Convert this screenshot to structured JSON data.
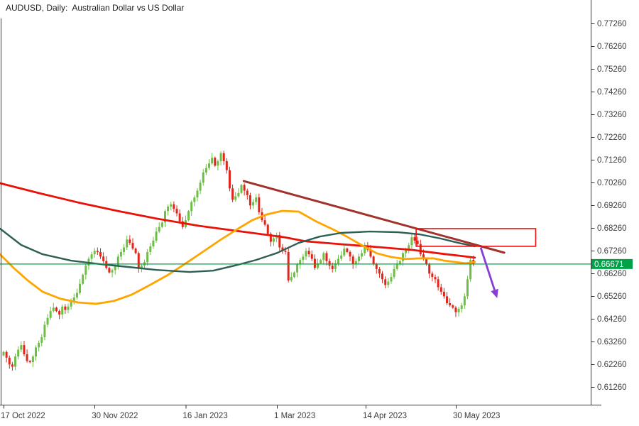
{
  "window": {
    "title": "AUDUSD, Daily:  Australian Dollar vs US Dollar"
  },
  "chart_data": {
    "type": "candlestick",
    "symbol": "AUDUSD",
    "timeframe": "Daily",
    "pair_description": "Australian Dollar vs US Dollar",
    "current_price": "0.66671",
    "price_axis": {
      "top_tick_value": 0.7726,
      "tick_step": 0.01,
      "ticks": [
        "0.77260",
        "0.76260",
        "0.75260",
        "0.74260",
        "0.73260",
        "0.72260",
        "0.71260",
        "0.70260",
        "0.69260",
        "0.68260",
        "0.67260",
        "0.66260",
        "0.65260",
        "0.64260",
        "0.63260",
        "0.62260",
        "0.61260"
      ]
    },
    "time_axis": {
      "ticks": [
        {
          "label": "17 Oct 2022",
          "bar": 0
        },
        {
          "label": "30 Nov 2022",
          "bar": 31
        },
        {
          "label": "16 Jan 2023",
          "bar": 62
        },
        {
          "label": "1 Mar 2023",
          "bar": 93.1
        },
        {
          "label": "14 Apr 2023",
          "bar": 123.3
        },
        {
          "label": "30 May 2023",
          "bar": 154
        }
      ]
    },
    "candles": {
      "first_open": 0.6265,
      "closes": [
        0.628,
        0.6255,
        0.6225,
        0.6215,
        0.626,
        0.629,
        0.631,
        0.627,
        0.624,
        0.6235,
        0.626,
        0.63,
        0.632,
        0.6345,
        0.64,
        0.643,
        0.646,
        0.6475,
        0.646,
        0.6445,
        0.648,
        0.6465,
        0.648,
        0.65,
        0.652,
        0.654,
        0.658,
        0.662,
        0.666,
        0.669,
        0.671,
        0.6725,
        0.672,
        0.67,
        0.668,
        0.665,
        0.663,
        0.664,
        0.666,
        0.67,
        0.672,
        0.674,
        0.6775,
        0.676,
        0.6735,
        0.6715,
        0.665,
        0.666,
        0.6675,
        0.672,
        0.6745,
        0.677,
        0.681,
        0.683,
        0.685,
        0.69,
        0.692,
        0.693,
        0.691,
        0.689,
        0.6855,
        0.683,
        0.686,
        0.69,
        0.694,
        0.696,
        0.699,
        0.7025,
        0.707,
        0.709,
        0.711,
        0.7135,
        0.71,
        0.712,
        0.7155,
        0.712,
        0.708,
        0.7,
        0.695,
        0.6965,
        0.698,
        0.7015,
        0.699,
        0.697,
        0.6925,
        0.694,
        0.696,
        0.6895,
        0.686,
        0.684,
        0.68,
        0.6765,
        0.678,
        0.6795,
        0.674,
        0.6725,
        0.672,
        0.6595,
        0.661,
        0.663,
        0.6665,
        0.6685,
        0.67,
        0.6725,
        0.671,
        0.669,
        0.665,
        0.667,
        0.6685,
        0.6715,
        0.668,
        0.666,
        0.6645,
        0.667,
        0.669,
        0.6705,
        0.6735,
        0.672,
        0.67,
        0.6665,
        0.668,
        0.67,
        0.6715,
        0.6745,
        0.673,
        0.67,
        0.6665,
        0.6645,
        0.6625,
        0.66,
        0.6575,
        0.659,
        0.661,
        0.6645,
        0.6665,
        0.668,
        0.6715,
        0.673,
        0.675,
        0.6785,
        0.677,
        0.6755,
        0.671,
        0.669,
        0.6665,
        0.6625,
        0.661,
        0.66,
        0.6565,
        0.6545,
        0.6525,
        0.6495,
        0.6485,
        0.6475,
        0.6455,
        0.647,
        0.6485,
        0.6525,
        0.66,
        0.6685,
        0.66671
      ]
    },
    "indicators": [
      {
        "name": "ma-red",
        "color": "#e81208",
        "width": 2.8,
        "points": [
          [
            -1.2,
            0.7023
          ],
          [
            12.1,
            0.6979
          ],
          [
            25.4,
            0.6938
          ],
          [
            38.7,
            0.6901
          ],
          [
            52.1,
            0.6867
          ],
          [
            66.6,
            0.6835
          ],
          [
            81.1,
            0.681
          ],
          [
            95.6,
            0.6785
          ],
          [
            102.9,
            0.6767
          ],
          [
            115.0,
            0.6754
          ],
          [
            127.1,
            0.6742
          ],
          [
            139.2,
            0.6729
          ],
          [
            148.9,
            0.6713
          ],
          [
            154.9,
            0.6704
          ],
          [
            160.5,
            0.6695
          ]
        ]
      },
      {
        "name": "ma-orange",
        "color": "#ffa500",
        "width": 2.8,
        "points": [
          [
            -1.2,
            0.671
          ],
          [
            3.6,
            0.6648
          ],
          [
            8.5,
            0.6592
          ],
          [
            13.3,
            0.6545
          ],
          [
            19.4,
            0.6514
          ],
          [
            25.4,
            0.6498
          ],
          [
            31.5,
            0.6492
          ],
          [
            37.5,
            0.6504
          ],
          [
            43.6,
            0.6532
          ],
          [
            49.6,
            0.6573
          ],
          [
            55.7,
            0.6617
          ],
          [
            61.7,
            0.6667
          ],
          [
            67.8,
            0.672
          ],
          [
            73.8,
            0.6773
          ],
          [
            79.9,
            0.6823
          ],
          [
            84.7,
            0.686
          ],
          [
            89.6,
            0.6885
          ],
          [
            94.9,
            0.6901
          ],
          [
            100.5,
            0.6898
          ],
          [
            106.5,
            0.6854
          ],
          [
            112.6,
            0.6817
          ],
          [
            116.7,
            0.6789
          ],
          [
            122.3,
            0.6748
          ],
          [
            127.1,
            0.6714
          ],
          [
            132.0,
            0.6698
          ],
          [
            136.8,
            0.6689
          ],
          [
            141.6,
            0.6692
          ],
          [
            146.5,
            0.6692
          ],
          [
            150.1,
            0.6682
          ],
          [
            153.7,
            0.6676
          ],
          [
            157.4,
            0.667
          ],
          [
            160.5,
            0.6676
          ]
        ]
      },
      {
        "name": "ma-teal",
        "color": "#2e5f55",
        "width": 2.4,
        "points": [
          [
            -1.2,
            0.6823
          ],
          [
            6.0,
            0.6751
          ],
          [
            13.3,
            0.671
          ],
          [
            23.0,
            0.6682
          ],
          [
            32.7,
            0.6667
          ],
          [
            42.4,
            0.6654
          ],
          [
            52.1,
            0.6641
          ],
          [
            63.4,
            0.6632
          ],
          [
            71.4,
            0.6638
          ],
          [
            78.7,
            0.666
          ],
          [
            86.0,
            0.6685
          ],
          [
            93.2,
            0.6716
          ],
          [
            100.5,
            0.676
          ],
          [
            107.7,
            0.6788
          ],
          [
            115.0,
            0.6804
          ],
          [
            124.7,
            0.681
          ],
          [
            134.3,
            0.6807
          ],
          [
            141.6,
            0.6798
          ],
          [
            148.9,
            0.6779
          ],
          [
            154.9,
            0.676
          ],
          [
            160.5,
            0.6745
          ]
        ]
      }
    ],
    "objects": {
      "trendline": {
        "color": "#a2332c",
        "width": 3,
        "from": [
          81.8,
          0.7032
        ],
        "to": [
          170.5,
          0.6717
        ]
      },
      "rectangle": {
        "color": "#ee1111",
        "width": 1.6,
        "from_bar": 140.5,
        "to_bar": 181.2,
        "top": 0.6823,
        "bottom": 0.6745
      },
      "arrow": {
        "color": "#8a3dd6",
        "width": 2.8,
        "from": [
          162.5,
          0.6739
        ],
        "to": [
          168.1,
          0.6517
        ]
      }
    },
    "colors": {
      "bull": "#6dbe45",
      "bear": "#e0251a",
      "price_line": "#00a248",
      "price_label_bg": "#00a248",
      "price_label_text": "#ffffff",
      "axis": "#3a3a3a",
      "tick_text": "#3c3c3c"
    }
  }
}
